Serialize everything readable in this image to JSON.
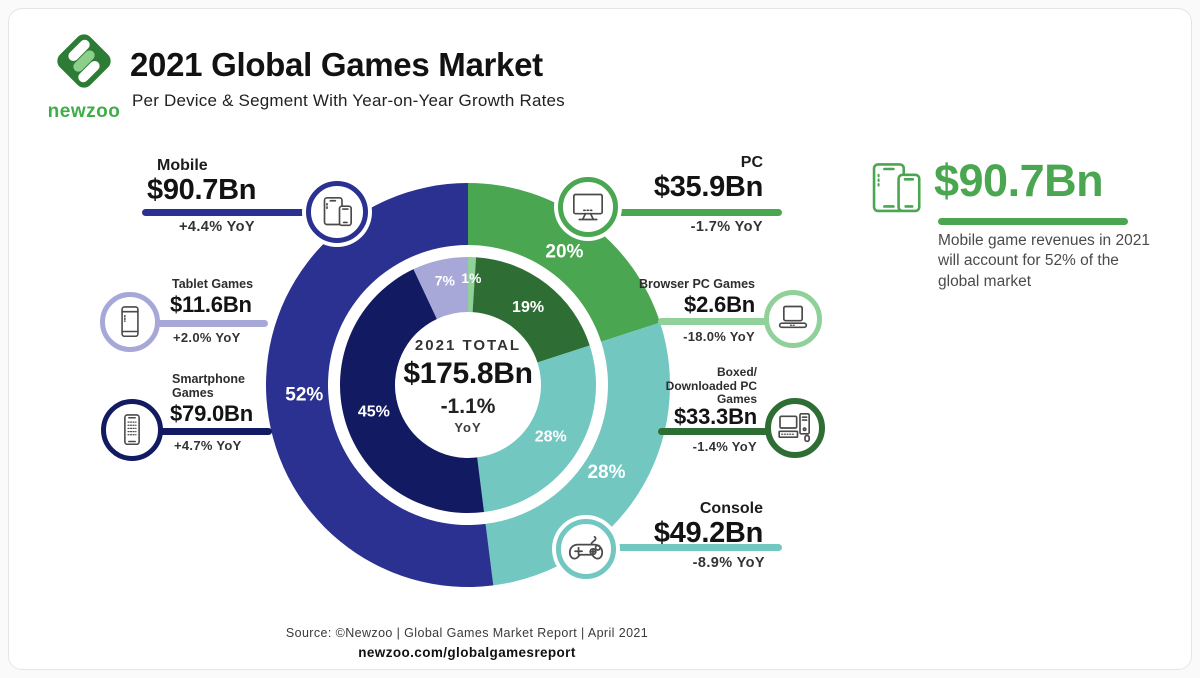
{
  "header": {
    "logo_text": "newzoo",
    "title": "2021 Global Games Market",
    "subtitle": "Per Device & Segment With Year-on-Year Growth Rates"
  },
  "chart_data": {
    "type": "pie",
    "subtype": "double-donut",
    "title": "2021 Global Games Market Per Device & Segment",
    "center": {
      "label": "2021 TOTAL",
      "value": "$175.8Bn",
      "yoy": "-1.1%",
      "yoy_unit": "YoY"
    },
    "outer_ring": {
      "name": "per-device",
      "segments": [
        {
          "label": "PC",
          "pct": 20,
          "color": "#4aa650"
        },
        {
          "label": "Console",
          "pct": 28,
          "color": "#72c7c1"
        },
        {
          "label": "Mobile",
          "pct": 52,
          "color": "#2b3190"
        }
      ]
    },
    "inner_ring": {
      "name": "per-segment",
      "segments": [
        {
          "label": "Browser PC Games",
          "pct": 1,
          "color": "#90d099"
        },
        {
          "label": "Boxed/Downloaded PC Games",
          "pct": 19,
          "color": "#2e6e35"
        },
        {
          "label": "Console",
          "pct": 28,
          "color": "#72c7c1"
        },
        {
          "label": "Smartphone Games",
          "pct": 45,
          "color": "#121a62"
        },
        {
          "label": "Tablet Games",
          "pct": 7,
          "color": "#a8a8d8"
        }
      ]
    }
  },
  "callouts": {
    "mobile": {
      "label": "Mobile",
      "value": "$90.7Bn",
      "growth": "+4.4% YoY",
      "color": "#2b3190"
    },
    "pc": {
      "label": "PC",
      "value": "$35.9Bn",
      "growth": "-1.7% YoY",
      "color": "#4aa650"
    },
    "console": {
      "label": "Console",
      "value": "$49.2Bn",
      "growth": "-8.9% YoY",
      "color": "#72c7c1"
    },
    "tablet": {
      "label": "Tablet Games",
      "value": "$11.6Bn",
      "growth": "+2.0% YoY",
      "color": "#a8a8d8"
    },
    "smartphone": {
      "label": "Smartphone Games",
      "value": "$79.0Bn",
      "growth": "+4.7% YoY",
      "color": "#121a62"
    },
    "browser": {
      "label": "Browser PC Games",
      "value": "$2.6Bn",
      "growth": "-18.0% YoY",
      "color": "#90d099"
    },
    "boxed": {
      "label": "Boxed/ Downloaded PC Games",
      "value": "$33.3Bn",
      "growth": "-1.4% YoY",
      "color": "#2e6e35"
    }
  },
  "highlight": {
    "value": "$90.7Bn",
    "description": "Mobile game revenues in 2021 will account for 52% of the global market",
    "color": "#4aa650"
  },
  "footer": {
    "source": "Source: ©Newzoo | Global Games Market Report | April 2021",
    "url": "newzoo.com/globalgamesreport"
  }
}
